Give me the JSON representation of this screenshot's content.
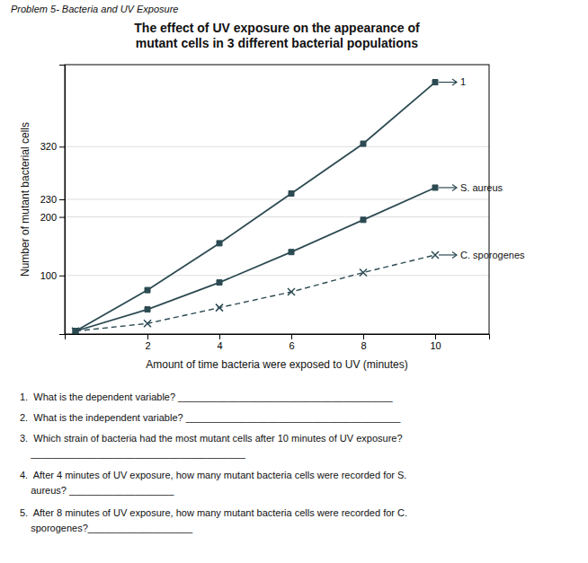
{
  "chart_data": {
    "type": "line",
    "subtitle": "Problem 5- Bacteria and UV Exposure",
    "title": "The effect of UV exposure on the appearance of\nmutant cells in 3 different bacterial populations",
    "x_label": "Amount of time bacteria were exposed to UV (minutes)",
    "y_label": "Number of mutant bacterial cells",
    "x": [
      0,
      2,
      4,
      6,
      8,
      10
    ],
    "series": [
      {
        "name": "1",
        "color": "#2c4a52",
        "marker": "square",
        "line_style": "solid",
        "values": [
          5,
          75,
          155,
          240,
          325,
          430
        ]
      },
      {
        "name": "S. aureus",
        "color": "#2c4a52",
        "marker": "square",
        "line_style": "solid",
        "values": [
          5,
          42,
          88,
          140,
          195,
          250
        ]
      },
      {
        "name": "C. sporogenes",
        "color": "#2c4a52",
        "marker": "x",
        "line_style": "dashed",
        "values": [
          5,
          18,
          45,
          72,
          105,
          135
        ]
      }
    ],
    "xlim": [
      -0.3,
      11.5
    ],
    "xticks": [
      2,
      4,
      6,
      8,
      10
    ],
    "ylim": [
      0,
      460
    ],
    "yticks": [
      100,
      200,
      230,
      320
    ],
    "grid": "y",
    "annotations": [
      "1.  What is the dependent variable? _______________________________________",
      "2.  What is the independent variable? _______________________________________",
      "3.  Which strain of bacteria had the most mutant cells after 10 minutes of UV exposure?",
      "    _______________________________________",
      "4.  After 4 minutes of UV exposure, how many mutant bacteria cells were recorded for S.",
      "    aureus? ___________________",
      "5.  After 8 minutes of UV exposure, how many mutant bacteria cells were recorded for C.",
      "    sporogenes?___________________"
    ]
  }
}
